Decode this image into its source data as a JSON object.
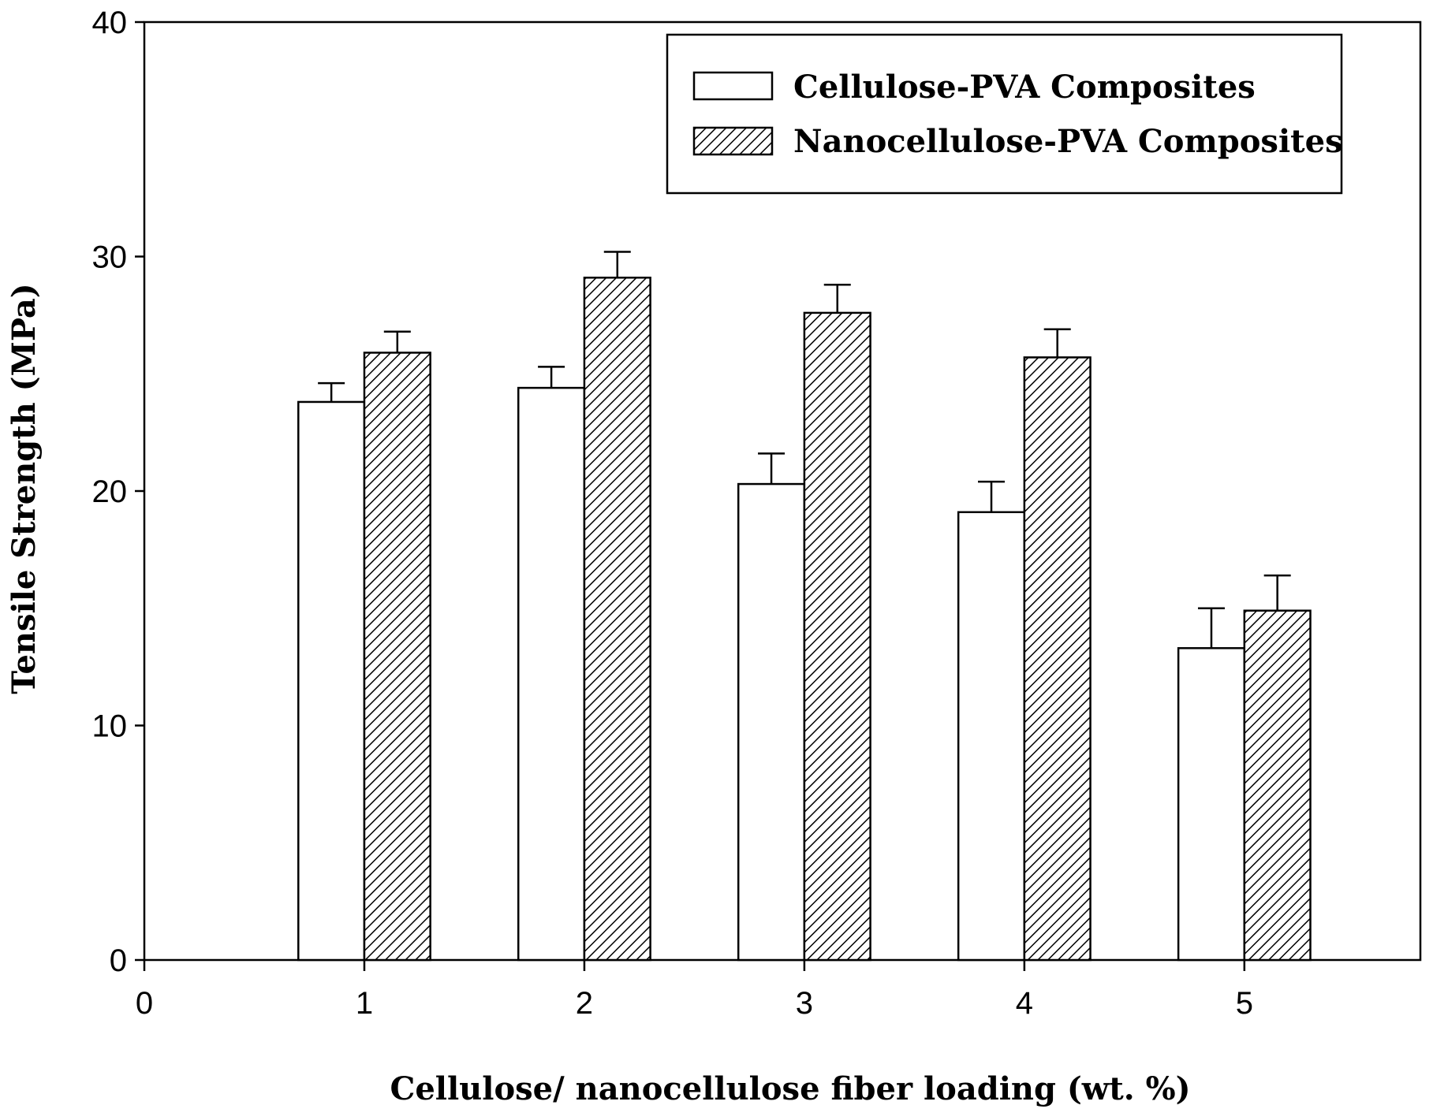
{
  "chart_data": {
    "type": "bar",
    "title": "",
    "xlabel": "Cellulose/ nanocellulose fiber loading (wt. %)",
    "ylabel": "Tensile Strength (MPa)",
    "xlim": [
      0,
      5.8
    ],
    "ylim": [
      0,
      40
    ],
    "x_ticks": [
      0,
      1,
      2,
      3,
      4,
      5
    ],
    "y_ticks": [
      0,
      10,
      20,
      30,
      40
    ],
    "grid": false,
    "legend_position": "top-right",
    "categories": [
      1,
      2,
      3,
      4,
      5
    ],
    "series": [
      {
        "name": "Cellulose-PVA Composites",
        "fill": "plain",
        "color": "#ffffff",
        "values": [
          23.8,
          24.4,
          20.3,
          19.1,
          13.3
        ],
        "errors": [
          0.8,
          0.9,
          1.3,
          1.3,
          1.7
        ]
      },
      {
        "name": "Nanocellulose-PVA Composites",
        "fill": "hatched",
        "color": "#ffffff",
        "values": [
          25.9,
          29.1,
          27.6,
          25.7,
          14.9
        ],
        "errors": [
          0.9,
          1.1,
          1.2,
          1.2,
          1.5
        ]
      }
    ]
  }
}
